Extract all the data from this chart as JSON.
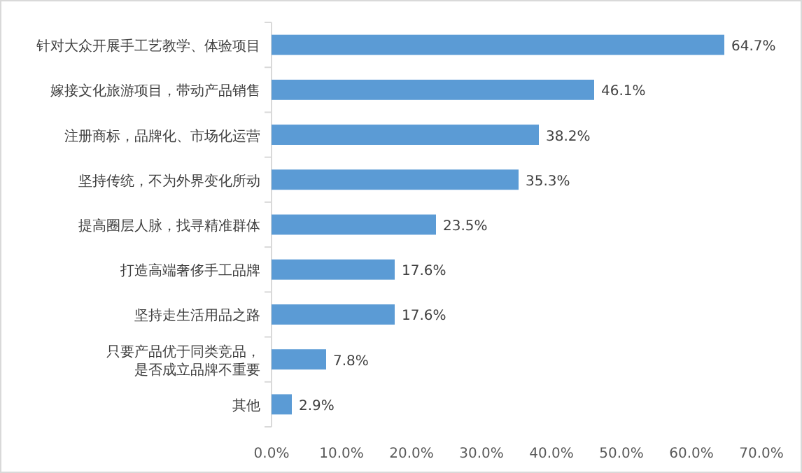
{
  "chart_data": {
    "type": "bar",
    "orientation": "horizontal",
    "categories": [
      "针对大众开展手工艺教学、体验项目",
      "嫁接文化旅游项目，带动产品销售",
      "注册商标，品牌化、市场化运营",
      "坚持传统，不为外界变化所动",
      "提高圈层人脉，找寻精准群体",
      "打造高端奢侈手工品牌",
      "坚持走生活用品之路",
      "只要产品优于同类竞品，是否成立品牌不重要",
      "其他"
    ],
    "values": [
      64.7,
      46.1,
      38.2,
      35.3,
      23.5,
      17.6,
      17.6,
      7.8,
      2.9
    ],
    "value_labels": [
      "64.7%",
      "46.1%",
      "38.2%",
      "35.3%",
      "23.5%",
      "17.6%",
      "17.6%",
      "7.8%",
      "2.9%"
    ],
    "color": "#5b9bd5",
    "xlim": [
      0,
      70
    ],
    "xticks": [
      {
        "value": 0,
        "label": "0.0%"
      },
      {
        "value": 10,
        "label": "10.0%"
      },
      {
        "value": 20,
        "label": "20.0%"
      },
      {
        "value": 30,
        "label": "30.0%"
      },
      {
        "value": 40,
        "label": "40.0%"
      },
      {
        "value": 50,
        "label": "50.0%"
      },
      {
        "value": 60,
        "label": "60.0%"
      },
      {
        "value": 70,
        "label": "70.0%"
      }
    ],
    "grid": false
  }
}
